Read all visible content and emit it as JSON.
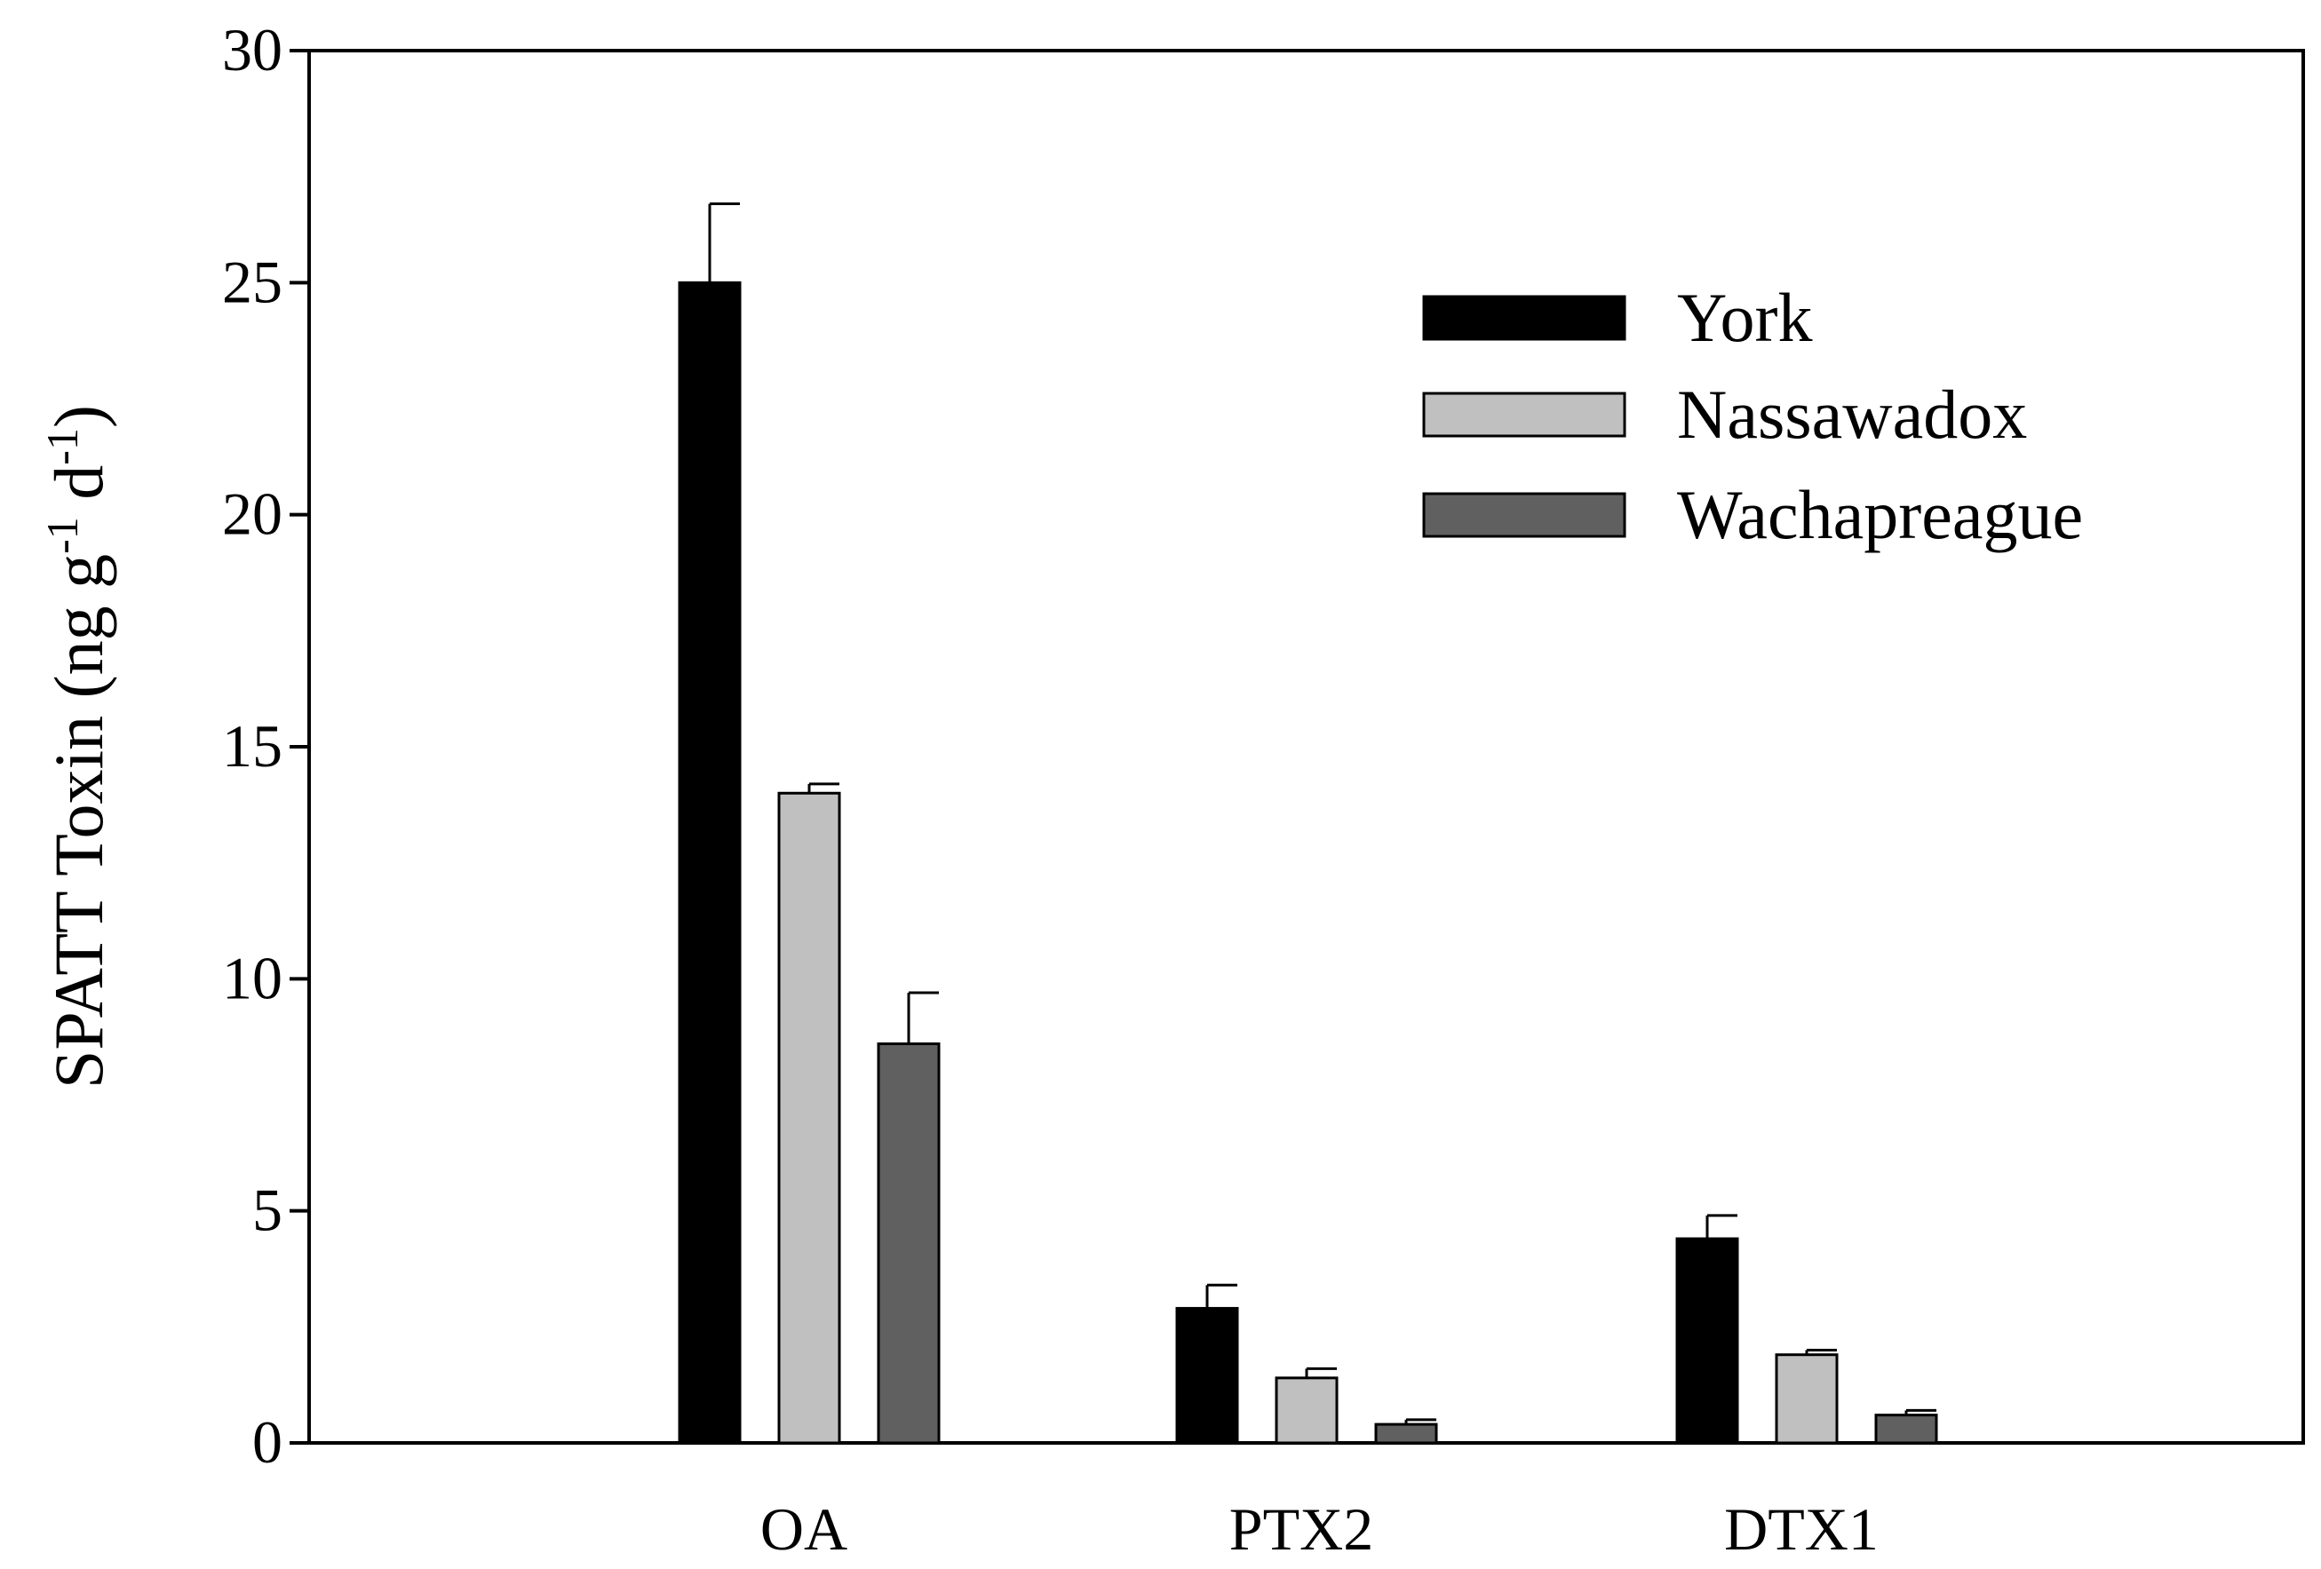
{
  "chart_data": {
    "type": "bar",
    "categories": [
      "OA",
      "PTX2",
      "DTX1"
    ],
    "series": [
      {
        "name": "York",
        "color": "#000000",
        "values": [
          25.0,
          2.9,
          4.4
        ],
        "errors": [
          1.7,
          0.5,
          0.5
        ]
      },
      {
        "name": "Nassawadox",
        "color": "#c0c0c0",
        "values": [
          14.0,
          1.4,
          1.9
        ],
        "errors": [
          0.2,
          0.2,
          0.1
        ]
      },
      {
        "name": "Wachapreague",
        "color": "#606060",
        "values": [
          8.6,
          0.4,
          0.6
        ],
        "errors": [
          1.1,
          0.1,
          0.1
        ]
      }
    ],
    "xlabel": "",
    "ylabel": {
      "main": "SPATT Toxin (ng g",
      "sup1": "-1",
      "mid": " d",
      "sup2": "-1",
      "end": ")"
    },
    "yticks": [
      0,
      5,
      10,
      15,
      20,
      25,
      30
    ],
    "ylim": [
      0,
      30
    ],
    "legend_position": "top-right",
    "grid": false
  }
}
